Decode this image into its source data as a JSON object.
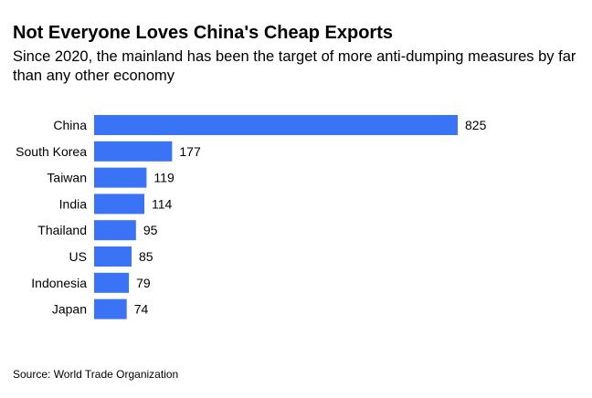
{
  "title": "Not Everyone Loves China's Cheap Exports",
  "subtitle": "Since 2020, the mainland has been the target of more anti-dumping measures by far than any other economy",
  "source": "Source: World Trade Organization",
  "colors": {
    "bar": "#3b73f7",
    "text": "#000000"
  },
  "chart_data": {
    "type": "bar",
    "orientation": "horizontal",
    "categories": [
      "China",
      "South Korea",
      "Taiwan",
      "India",
      "Thailand",
      "US",
      "Indonesia",
      "Japan"
    ],
    "values": [
      825,
      177,
      119,
      114,
      95,
      85,
      79,
      74
    ],
    "title": "Not Everyone Loves China's Cheap Exports",
    "subtitle": "Since 2020, the mainland has been the target of more anti-dumping measures by far than any other economy",
    "xlabel": "",
    "ylabel": "",
    "xlim": [
      0,
      825
    ],
    "data_labels": true,
    "grid": false,
    "legend": "none"
  }
}
